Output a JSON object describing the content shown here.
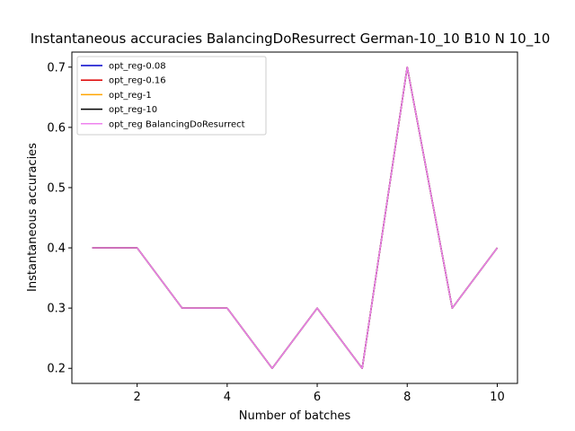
{
  "chart_data": {
    "type": "line",
    "title": "Instantaneous accuracies BalancingDoResurrect German-10_10 B10 N 10_10",
    "xlabel": "Number of batches",
    "ylabel": "Instantaneous accuracies",
    "x": [
      1,
      2,
      3,
      4,
      5,
      6,
      7,
      8,
      9,
      10
    ],
    "xticks": [
      2,
      4,
      6,
      8,
      10
    ],
    "yticks": [
      0.2,
      0.3,
      0.4,
      0.5,
      0.6,
      0.7
    ],
    "xtick_labels": [
      "2",
      "4",
      "6",
      "8",
      "10"
    ],
    "ytick_labels": [
      "0.2",
      "0.3",
      "0.4",
      "0.5",
      "0.6",
      "0.7"
    ],
    "xlim": [
      0.55,
      10.45
    ],
    "ylim": [
      0.175,
      0.725
    ],
    "grid": false,
    "legend_position": "top-left",
    "series": [
      {
        "name": "opt_reg-0.08",
        "color": "#0000cc",
        "values": [
          0.4,
          0.4,
          0.3,
          0.3,
          0.2,
          0.3,
          0.2,
          0.7,
          0.3,
          0.4
        ]
      },
      {
        "name": "opt_reg-0.16",
        "color": "#dd0000",
        "values": [
          0.4,
          0.4,
          0.3,
          0.3,
          0.2,
          0.3,
          0.2,
          0.7,
          0.3,
          0.4
        ]
      },
      {
        "name": "opt_reg-1",
        "color": "#ffa500",
        "values": [
          0.4,
          0.4,
          0.3,
          0.3,
          0.2,
          0.3,
          0.2,
          0.7,
          0.3,
          0.4
        ]
      },
      {
        "name": "opt_reg-10",
        "color": "#000000",
        "values": [
          0.4,
          0.4,
          0.3,
          0.3,
          0.2,
          0.3,
          0.2,
          0.7,
          0.3,
          0.4
        ]
      },
      {
        "name": "opt_reg BalancingDoResurrect",
        "color": "#ee82ee",
        "values": [
          0.4,
          0.4,
          0.3,
          0.3,
          0.2,
          0.3,
          0.2,
          0.7,
          0.3,
          0.4
        ]
      }
    ]
  }
}
